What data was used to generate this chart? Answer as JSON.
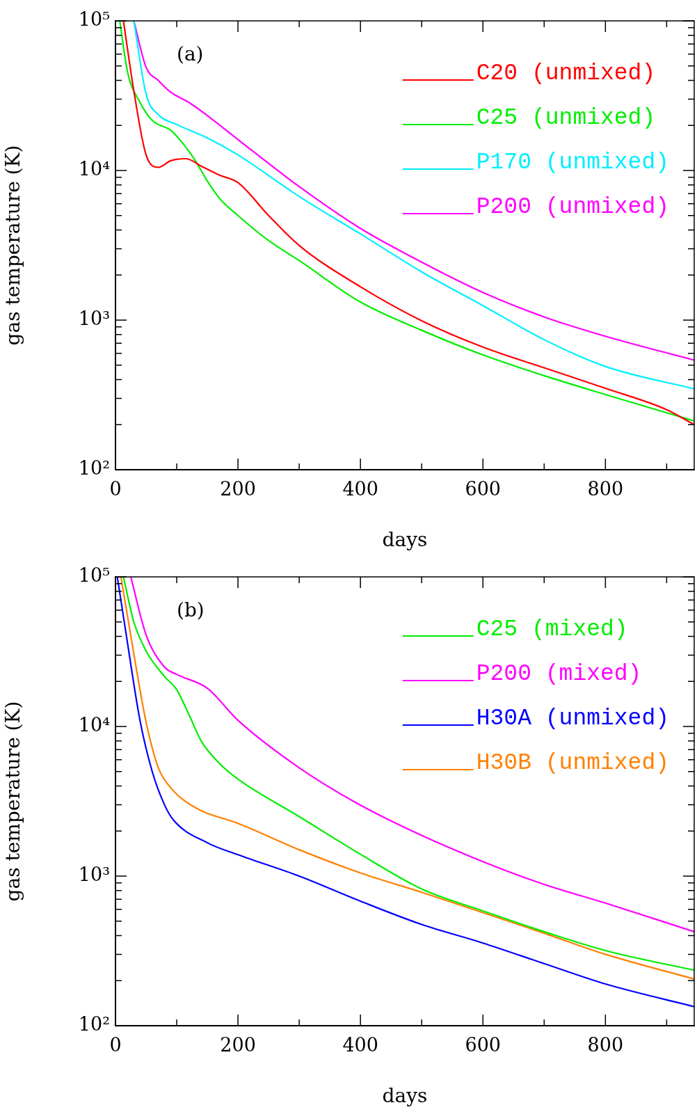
{
  "chart_data": [
    {
      "type": "line",
      "xlabel": "days",
      "ylabel": "gas temperature (K)",
      "annotations": [
        "(a)"
      ],
      "log": "y",
      "legend": "top right",
      "marker": "none",
      "xlim": [
        0,
        945
      ],
      "xticks": [
        0,
        {
          "value": 100,
          "label": null
        },
        200,
        {
          "value": 300,
          "label": null
        },
        400,
        {
          "value": 500,
          "label": null
        },
        600,
        {
          "value": 700,
          "label": null
        },
        800,
        {
          "value": 900,
          "label": null
        }
      ],
      "ylim": [
        100,
        100000
      ],
      "yticks": [
        {
          "value": 100,
          "label": "10²"
        },
        {
          "value": 200,
          "label": null
        },
        {
          "value": 300,
          "label": null
        },
        {
          "value": 400,
          "label": null
        },
        {
          "value": 500,
          "label": null
        },
        {
          "value": 600,
          "label": null
        },
        {
          "value": 700,
          "label": null
        },
        {
          "value": 800,
          "label": null
        },
        {
          "value": 900,
          "label": null
        },
        {
          "value": 1000,
          "label": "10³"
        },
        {
          "value": 2000,
          "label": null
        },
        {
          "value": 3000,
          "label": null
        },
        {
          "value": 4000,
          "label": null
        },
        {
          "value": 5000,
          "label": null
        },
        {
          "value": 6000,
          "label": null
        },
        {
          "value": 7000,
          "label": null
        },
        {
          "value": 8000,
          "label": null
        },
        {
          "value": 9000,
          "label": null
        },
        {
          "value": 10000,
          "label": "10⁴"
        },
        {
          "value": 20000,
          "label": null
        },
        {
          "value": 30000,
          "label": null
        },
        {
          "value": 40000,
          "label": null
        },
        {
          "value": 50000,
          "label": null
        },
        {
          "value": 60000,
          "label": null
        },
        {
          "value": 70000,
          "label": null
        },
        {
          "value": 80000,
          "label": null
        },
        {
          "value": 90000,
          "label": null
        },
        {
          "value": 100000,
          "label": "10⁵"
        }
      ],
      "series": [
        {
          "name": "C20 (unmixed)",
          "color": "#ff0000",
          "x": [
            13,
            30,
            50,
            70,
            90,
            115,
            140,
            170,
            200,
            250,
            300,
            400,
            500,
            600,
            700,
            800,
            900,
            945
          ],
          "values": [
            100000,
            34000,
            12700,
            10500,
            11600,
            12000,
            10700,
            9300,
            8300,
            5000,
            3150,
            1670,
            990,
            660,
            480,
            350,
            252,
            200
          ]
        },
        {
          "name": "C25 (unmixed)",
          "color": "#00ee00",
          "x": [
            7,
            20,
            40,
            60,
            90,
            110,
            130,
            150,
            170,
            200,
            250,
            300,
            400,
            500,
            600,
            700,
            800,
            945
          ],
          "values": [
            100000,
            45000,
            28600,
            21600,
            18600,
            15200,
            11700,
            8500,
            6500,
            5000,
            3400,
            2500,
            1320,
            855,
            585,
            425,
            318,
            212
          ]
        },
        {
          "name": "P170 (unmixed)",
          "color": "#00eeff",
          "x": [
            30,
            50,
            70,
            100,
            150,
            200,
            300,
            400,
            500,
            600,
            700,
            800,
            945
          ],
          "values": [
            100000,
            32400,
            23600,
            20300,
            16500,
            12700,
            6700,
            3770,
            2100,
            1250,
            740,
            490,
            347
          ]
        },
        {
          "name": "P200 (unmixed)",
          "color": "#ff00ff",
          "x": [
            30,
            50,
            70,
            90,
            120,
            150,
            200,
            300,
            400,
            500,
            600,
            700,
            800,
            945
          ],
          "values": [
            100000,
            49000,
            40000,
            33400,
            28500,
            23300,
            16100,
            7800,
            4100,
            2440,
            1530,
            1050,
            780,
            540
          ]
        }
      ]
    },
    {
      "type": "line",
      "xlabel": "days",
      "ylabel": "gas temperature (K)",
      "annotations": [
        "(b)"
      ],
      "log": "y",
      "legend": "top right",
      "marker": "none",
      "xlim": [
        0,
        945
      ],
      "xticks": [
        0,
        {
          "value": 100,
          "label": null
        },
        200,
        {
          "value": 300,
          "label": null
        },
        400,
        {
          "value": 500,
          "label": null
        },
        600,
        {
          "value": 700,
          "label": null
        },
        800,
        {
          "value": 900,
          "label": null
        }
      ],
      "ylim": [
        100,
        100000
      ],
      "yticks": [
        {
          "value": 100,
          "label": "10²"
        },
        {
          "value": 200,
          "label": null
        },
        {
          "value": 300,
          "label": null
        },
        {
          "value": 400,
          "label": null
        },
        {
          "value": 500,
          "label": null
        },
        {
          "value": 600,
          "label": null
        },
        {
          "value": 700,
          "label": null
        },
        {
          "value": 800,
          "label": null
        },
        {
          "value": 900,
          "label": null
        },
        {
          "value": 1000,
          "label": "10³"
        },
        {
          "value": 2000,
          "label": null
        },
        {
          "value": 3000,
          "label": null
        },
        {
          "value": 4000,
          "label": null
        },
        {
          "value": 5000,
          "label": null
        },
        {
          "value": 6000,
          "label": null
        },
        {
          "value": 7000,
          "label": null
        },
        {
          "value": 8000,
          "label": null
        },
        {
          "value": 9000,
          "label": null
        },
        {
          "value": 10000,
          "label": "10⁴"
        },
        {
          "value": 20000,
          "label": null
        },
        {
          "value": 30000,
          "label": null
        },
        {
          "value": 40000,
          "label": null
        },
        {
          "value": 50000,
          "label": null
        },
        {
          "value": 60000,
          "label": null
        },
        {
          "value": 70000,
          "label": null
        },
        {
          "value": 80000,
          "label": null
        },
        {
          "value": 90000,
          "label": null
        },
        {
          "value": 100000,
          "label": "10⁵"
        }
      ],
      "series": [
        {
          "name": "C25 (mixed)",
          "color": "#00ee00",
          "x": [
            13,
            30,
            50,
            80,
            100,
            120,
            140,
            170,
            200,
            300,
            400,
            500,
            600,
            700,
            800,
            945
          ],
          "values": [
            100000,
            50000,
            32000,
            21600,
            17600,
            12000,
            8000,
            5650,
            4450,
            2500,
            1400,
            820,
            585,
            425,
            318,
            235
          ]
        },
        {
          "name": "P200 (mixed)",
          "color": "#ff00ff",
          "x": [
            25,
            50,
            80,
            100,
            150,
            200,
            300,
            400,
            500,
            600,
            700,
            800,
            945
          ],
          "values": [
            100000,
            41000,
            25000,
            22300,
            18000,
            11000,
            5300,
            2980,
            1870,
            1250,
            880,
            660,
            425
          ]
        },
        {
          "name": "H30A (unmixed)",
          "color": "#0000ff",
          "x": [
            3,
            18,
            40,
            60,
            80,
            95,
            150,
            200,
            300,
            400,
            500,
            600,
            700,
            800,
            945
          ],
          "values": [
            100000,
            40000,
            11000,
            5000,
            3000,
            2360,
            1670,
            1390,
            1000,
            680,
            475,
            357,
            260,
            190,
            134
          ]
        },
        {
          "name": "H30B (unmixed)",
          "color": "#ff8000",
          "x": [
            9,
            30,
            50,
            70,
            90,
            110,
            140,
            200,
            300,
            400,
            500,
            600,
            700,
            800,
            945
          ],
          "values": [
            100000,
            30500,
            10700,
            5300,
            3900,
            3250,
            2740,
            2250,
            1500,
            1050,
            780,
            570,
            415,
            300,
            205
          ]
        }
      ]
    }
  ]
}
